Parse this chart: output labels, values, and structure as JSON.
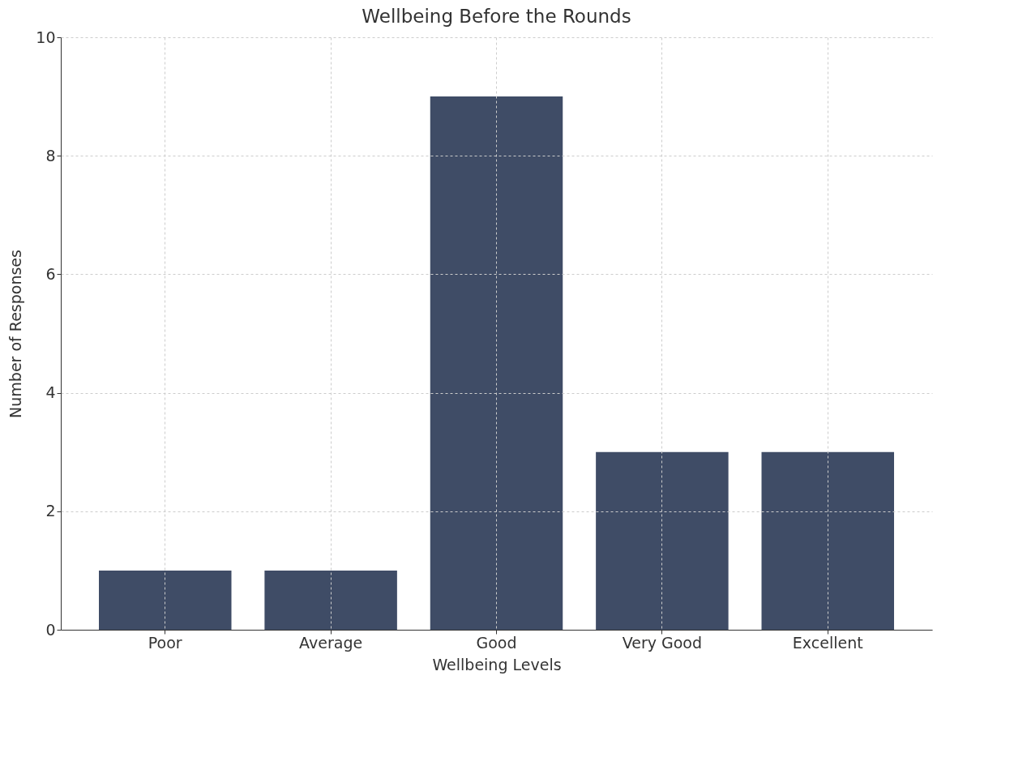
{
  "chart_data": {
    "type": "bar",
    "title": "Wellbeing Before the Rounds",
    "xlabel": "Wellbeing Levels",
    "ylabel": "Number of Responses",
    "categories": [
      "Poor",
      "Average",
      "Good",
      "Very Good",
      "Excellent"
    ],
    "values": [
      1,
      1,
      9,
      3,
      3
    ],
    "color": "#3f4c66",
    "ylim": [
      0,
      10
    ],
    "yticks": [
      0,
      2,
      4,
      6,
      8,
      10
    ],
    "grid": true
  }
}
